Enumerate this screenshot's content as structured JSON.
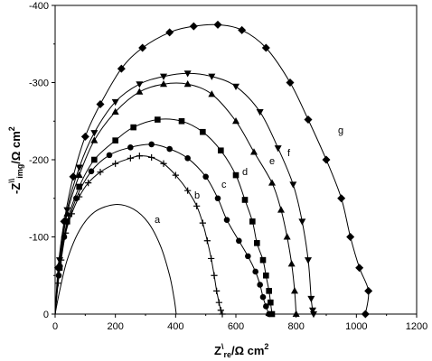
{
  "chart_data": {
    "type": "scatter",
    "xlabel": {
      "main": "Z",
      "sup": "\\",
      "sub": "re",
      "unit": "/Ω cm",
      "unit_sup": "2"
    },
    "ylabel": {
      "main": "-Z",
      "sup": "\\\\",
      "sub": "img",
      "unit": "/Ω cm",
      "unit_sup": "2"
    },
    "xlim": [
      0,
      1200
    ],
    "ylim": [
      0,
      -400
    ],
    "x_ticks": [
      "0",
      "200",
      "400",
      "600",
      "800",
      "1000",
      "1200"
    ],
    "y_ticks": [
      "-400",
      "-300",
      "-200",
      "-100",
      "0"
    ],
    "grid": false,
    "series": [
      {
        "name": "a",
        "marker": "none",
        "points": [
          [
            0,
            0
          ],
          [
            15,
            -30
          ],
          [
            40,
            -70
          ],
          [
            80,
            -108
          ],
          [
            130,
            -132
          ],
          [
            200,
            -142
          ],
          [
            260,
            -136
          ],
          [
            310,
            -118
          ],
          [
            350,
            -88
          ],
          [
            380,
            -50
          ],
          [
            395,
            -20
          ],
          [
            402,
            0
          ]
        ]
      },
      {
        "name": "b",
        "marker": "plus",
        "points": [
          [
            0,
            0
          ],
          [
            10,
            -40
          ],
          [
            20,
            -70
          ],
          [
            35,
            -105
          ],
          [
            55,
            -130
          ],
          [
            80,
            -152
          ],
          [
            110,
            -170
          ],
          [
            150,
            -184
          ],
          [
            200,
            -195
          ],
          [
            250,
            -202
          ],
          [
            280,
            -205
          ],
          [
            320,
            -203
          ],
          [
            360,
            -195
          ],
          [
            400,
            -180
          ],
          [
            440,
            -160
          ],
          [
            470,
            -140
          ],
          [
            490,
            -118
          ],
          [
            505,
            -95
          ],
          [
            518,
            -72
          ],
          [
            528,
            -50
          ],
          [
            536,
            -30
          ],
          [
            544,
            -15
          ],
          [
            550,
            -5
          ],
          [
            555,
            0
          ]
        ]
      },
      {
        "name": "c",
        "marker": "circle",
        "points": [
          [
            0,
            0
          ],
          [
            12,
            -50
          ],
          [
            30,
            -100
          ],
          [
            70,
            -150
          ],
          [
            120,
            -185
          ],
          [
            180,
            -206
          ],
          [
            250,
            -216
          ],
          [
            320,
            -220
          ],
          [
            380,
            -214
          ],
          [
            440,
            -202
          ],
          [
            500,
            -178
          ],
          [
            540,
            -150
          ],
          [
            570,
            -122
          ],
          [
            610,
            -95
          ],
          [
            640,
            -75
          ],
          [
            665,
            -55
          ],
          [
            680,
            -38
          ],
          [
            690,
            -22
          ],
          [
            700,
            -10
          ],
          [
            710,
            0
          ]
        ]
      },
      {
        "name": "d",
        "marker": "square",
        "points": [
          [
            0,
            0
          ],
          [
            15,
            -60
          ],
          [
            40,
            -120
          ],
          [
            80,
            -165
          ],
          [
            130,
            -200
          ],
          [
            200,
            -225
          ],
          [
            260,
            -242
          ],
          [
            340,
            -252
          ],
          [
            420,
            -250
          ],
          [
            490,
            -236
          ],
          [
            550,
            -212
          ],
          [
            600,
            -180
          ],
          [
            630,
            -148
          ],
          [
            655,
            -120
          ],
          [
            670,
            -92
          ],
          [
            690,
            -70
          ],
          [
            700,
            -50
          ],
          [
            710,
            -30
          ],
          [
            715,
            -15
          ],
          [
            720,
            0
          ]
        ]
      },
      {
        "name": "e",
        "marker": "triangle-up",
        "points": [
          [
            0,
            0
          ],
          [
            15,
            -65
          ],
          [
            40,
            -130
          ],
          [
            80,
            -180
          ],
          [
            130,
            -225
          ],
          [
            200,
            -262
          ],
          [
            280,
            -288
          ],
          [
            360,
            -298
          ],
          [
            440,
            -298
          ],
          [
            520,
            -285
          ],
          [
            600,
            -250
          ],
          [
            660,
            -210
          ],
          [
            720,
            -170
          ],
          [
            750,
            -135
          ],
          [
            770,
            -100
          ],
          [
            785,
            -65
          ],
          [
            795,
            -30
          ],
          [
            800,
            0
          ]
        ]
      },
      {
        "name": "f",
        "marker": "triangle-down",
        "points": [
          [
            0,
            0
          ],
          [
            15,
            -70
          ],
          [
            40,
            -135
          ],
          [
            80,
            -190
          ],
          [
            130,
            -235
          ],
          [
            200,
            -275
          ],
          [
            280,
            -298
          ],
          [
            360,
            -308
          ],
          [
            440,
            -312
          ],
          [
            520,
            -308
          ],
          [
            600,
            -295
          ],
          [
            680,
            -262
          ],
          [
            740,
            -215
          ],
          [
            790,
            -168
          ],
          [
            820,
            -120
          ],
          [
            840,
            -70
          ],
          [
            850,
            -20
          ],
          [
            855,
            -5
          ],
          [
            858,
            0
          ]
        ]
      },
      {
        "name": "g",
        "marker": "diamond",
        "points": [
          [
            0,
            0
          ],
          [
            10,
            -60
          ],
          [
            30,
            -120
          ],
          [
            60,
            -178
          ],
          [
            100,
            -230
          ],
          [
            150,
            -272
          ],
          [
            220,
            -318
          ],
          [
            290,
            -345
          ],
          [
            380,
            -365
          ],
          [
            460,
            -373
          ],
          [
            540,
            -375
          ],
          [
            620,
            -368
          ],
          [
            700,
            -345
          ],
          [
            780,
            -300
          ],
          [
            840,
            -252
          ],
          [
            900,
            -200
          ],
          [
            950,
            -150
          ],
          [
            980,
            -100
          ],
          [
            1010,
            -60
          ],
          [
            1040,
            -30
          ],
          [
            1030,
            0
          ]
        ]
      }
    ]
  }
}
